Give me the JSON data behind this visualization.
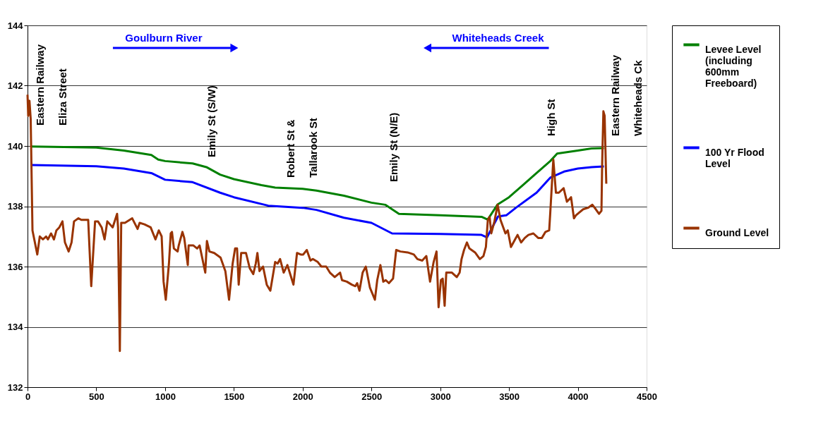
{
  "chart_data": {
    "type": "line",
    "xlim": [
      0,
      4500
    ],
    "xticks": [
      0,
      500,
      1000,
      1500,
      2000,
      2500,
      3000,
      3500,
      4000,
      4500
    ],
    "ylim": [
      132,
      144
    ],
    "yticks": [
      132,
      134,
      136,
      138,
      140,
      142,
      144
    ],
    "grid": "y",
    "legend": "right",
    "marker": "none",
    "line_style": "solid",
    "series": [
      {
        "name": "Levee Level (including 600mm Freeboard)",
        "color": "#008000",
        "x": [
          30,
          500,
          700,
          900,
          950,
          1000,
          1200,
          1300,
          1400,
          1500,
          1700,
          1800,
          2000,
          2100,
          2300,
          2500,
          2600,
          2700,
          3000,
          3300,
          3345,
          3417,
          3500,
          3600,
          3700,
          3800,
          3850,
          4000,
          4100,
          4190
        ],
        "values": [
          139.98,
          139.95,
          139.85,
          139.7,
          139.55,
          139.5,
          139.42,
          139.3,
          139.05,
          138.9,
          138.7,
          138.62,
          138.58,
          138.52,
          138.35,
          138.12,
          138.05,
          137.75,
          137.7,
          137.65,
          137.56,
          138.06,
          138.3,
          138.7,
          139.1,
          139.5,
          139.75,
          139.85,
          139.92,
          139.93
        ]
      },
      {
        "name": "100 Yr Flood Level",
        "color": "#0000ff",
        "x": [
          30,
          500,
          700,
          900,
          1000,
          1200,
          1400,
          1500,
          1750,
          2000,
          2100,
          2300,
          2500,
          2650,
          3000,
          3300,
          3340,
          3420,
          3480,
          3550,
          3700,
          3800,
          3900,
          4000,
          4100,
          4190
        ],
        "values": [
          139.37,
          139.33,
          139.25,
          139.1,
          138.88,
          138.8,
          138.45,
          138.3,
          138.02,
          137.95,
          137.88,
          137.62,
          137.45,
          137.1,
          137.08,
          137.05,
          136.97,
          137.66,
          137.7,
          137.95,
          138.45,
          138.95,
          139.15,
          139.25,
          139.3,
          139.32
        ]
      },
      {
        "name": "Ground Level",
        "color": "#993300",
        "x": [
          0,
          5,
          14,
          23,
          36,
          71,
          89,
          112,
          135,
          148,
          171,
          192,
          210,
          231,
          254,
          272,
          299,
          320,
          338,
          370,
          391,
          441,
          463,
          491,
          512,
          539,
          560,
          580,
          619,
          651,
          658,
          671,
          681,
          708,
          761,
          800,
          815,
          850,
          895,
          930,
          954,
          975,
          989,
          1005,
          1028,
          1041,
          1050,
          1064,
          1091,
          1099,
          1126,
          1139,
          1165,
          1171,
          1206,
          1233,
          1251,
          1292,
          1304,
          1322,
          1357,
          1403,
          1438,
          1465,
          1491,
          1509,
          1523,
          1535,
          1553,
          1588,
          1615,
          1641,
          1659,
          1671,
          1686,
          1712,
          1739,
          1765,
          1800,
          1818,
          1836,
          1862,
          1889,
          1906,
          1933,
          1959,
          1986,
          2004,
          2030,
          2057,
          2074,
          2110,
          2136,
          2171,
          2198,
          2233,
          2272,
          2286,
          2321,
          2357,
          2383,
          2396,
          2413,
          2436,
          2459,
          2489,
          2525,
          2542,
          2565,
          2586,
          2604,
          2627,
          2657,
          2663,
          2680,
          2710,
          2763,
          2808,
          2834,
          2869,
          2899,
          2926,
          2952,
          2973,
          2988,
          3005,
          3018,
          3032,
          3044,
          3085,
          3120,
          3141,
          3155,
          3173,
          3194,
          3212,
          3253,
          3288,
          3314,
          3332,
          3346,
          3359,
          3371,
          3394,
          3417,
          3438,
          3474,
          3491,
          3514,
          3544,
          3562,
          3588,
          3615,
          3641,
          3677,
          3712,
          3739,
          3765,
          3792,
          3800,
          3822,
          3841,
          3862,
          3897,
          3921,
          3951,
          3972,
          3986,
          4012,
          4039,
          4074,
          4106,
          4131,
          4154,
          4172,
          4177,
          4186,
          4195,
          4207
        ],
        "values": [
          141.7,
          141.0,
          141.5,
          140.9,
          137.2,
          136.4,
          137.0,
          136.9,
          137.0,
          136.9,
          137.1,
          136.9,
          137.2,
          137.3,
          137.5,
          136.8,
          136.5,
          136.8,
          137.5,
          137.6,
          137.55,
          137.55,
          135.35,
          137.5,
          137.5,
          137.3,
          136.9,
          137.5,
          137.3,
          137.75,
          137.3,
          133.2,
          137.45,
          137.45,
          137.6,
          137.25,
          137.45,
          137.4,
          137.3,
          136.9,
          137.2,
          137.0,
          135.5,
          134.9,
          136.1,
          137.1,
          137.15,
          136.6,
          136.5,
          136.7,
          137.15,
          136.95,
          136.05,
          136.7,
          136.7,
          136.6,
          136.7,
          135.8,
          136.85,
          136.5,
          136.45,
          136.3,
          135.85,
          134.9,
          136.1,
          136.6,
          136.6,
          135.4,
          136.45,
          136.45,
          135.95,
          135.75,
          136.1,
          136.45,
          135.85,
          136.0,
          135.4,
          135.2,
          136.15,
          136.1,
          136.25,
          135.8,
          136.05,
          135.8,
          135.4,
          136.45,
          136.4,
          136.4,
          136.55,
          136.2,
          136.25,
          136.15,
          136.0,
          136.0,
          135.8,
          135.65,
          135.8,
          135.55,
          135.5,
          135.4,
          135.35,
          135.45,
          135.2,
          135.8,
          136.0,
          135.3,
          134.9,
          135.55,
          136.05,
          135.5,
          135.55,
          135.45,
          135.6,
          135.85,
          136.55,
          136.5,
          136.47,
          136.4,
          136.25,
          136.2,
          136.35,
          135.5,
          136.15,
          136.5,
          134.65,
          135.55,
          135.6,
          134.7,
          135.8,
          135.8,
          135.65,
          135.8,
          136.25,
          136.55,
          136.8,
          136.6,
          136.47,
          136.25,
          136.35,
          136.65,
          137.55,
          137.65,
          137.1,
          137.5,
          138.05,
          137.55,
          137.1,
          137.2,
          136.65,
          136.9,
          137.05,
          136.8,
          136.95,
          137.05,
          137.1,
          136.95,
          136.95,
          137.15,
          137.2,
          137.8,
          139.55,
          138.45,
          138.45,
          138.6,
          138.15,
          138.3,
          137.6,
          137.7,
          137.8,
          137.9,
          137.95,
          138.05,
          137.9,
          137.75,
          137.85,
          139.4,
          141.15,
          141.0,
          138.75
        ]
      }
    ],
    "annotations": [
      "Eastern Railway\nEliza Street",
      "Emily St (S/W)",
      "Robert St &\nTallarook St",
      "Emily St (N/E)",
      "High St",
      "Eastern Railway\nWhiteheads Ck",
      "Goulburn River",
      "Whiteheads Creek"
    ]
  }
}
